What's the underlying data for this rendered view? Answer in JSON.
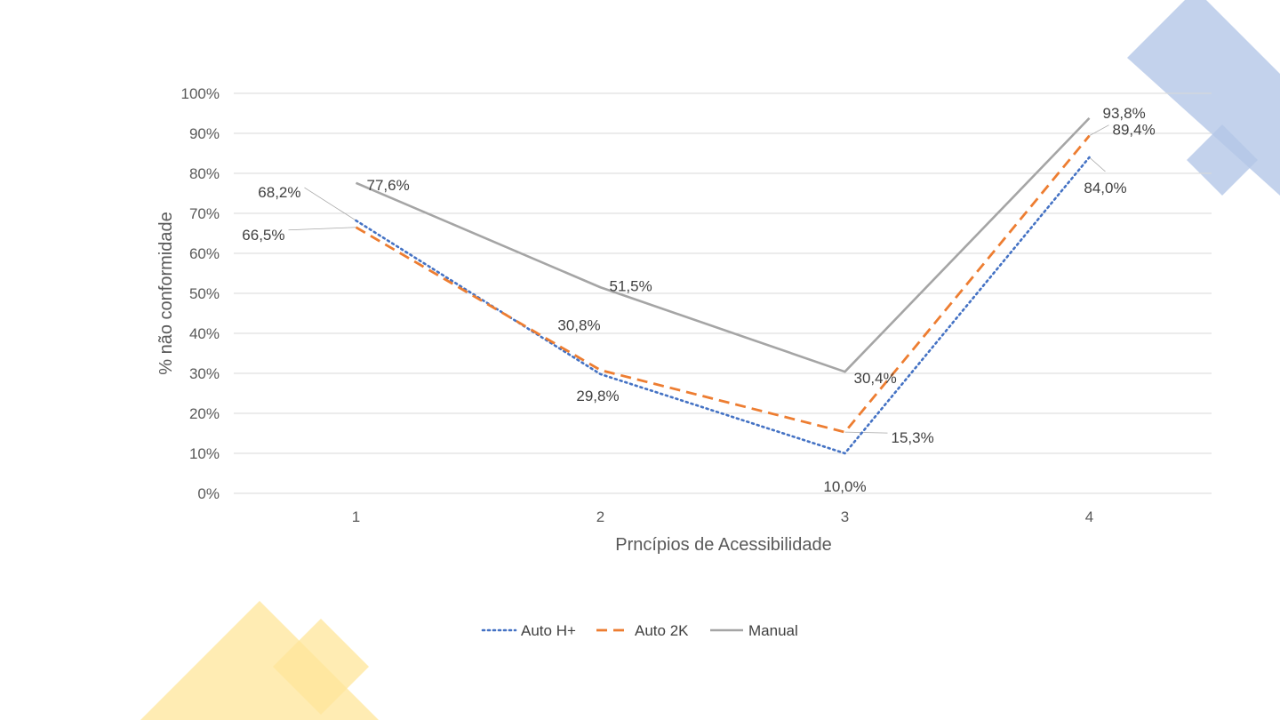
{
  "chart_data": {
    "type": "line",
    "title": "",
    "xlabel": "Prncípios de Acessibilidade",
    "ylabel": "% não conformidade",
    "categories": [
      "1",
      "2",
      "3",
      "4"
    ],
    "ylim": [
      0,
      100
    ],
    "yticks": [
      "0%",
      "10%",
      "20%",
      "30%",
      "40%",
      "50%",
      "60%",
      "70%",
      "80%",
      "90%",
      "100%"
    ],
    "grid": true,
    "legend_position": "bottom",
    "series": [
      {
        "name": "Auto H+",
        "values": [
          68.2,
          29.8,
          10.0,
          84.0
        ],
        "labels": [
          "68,2%",
          "29,8%",
          "10,0%",
          "84,0%"
        ],
        "color": "#4472C4",
        "style": "dotted"
      },
      {
        "name": "Auto 2K",
        "values": [
          66.5,
          30.8,
          15.3,
          89.4
        ],
        "labels": [
          "66,5%",
          "30,8%",
          "15,3%",
          "89,4%"
        ],
        "color": "#ED7D31",
        "style": "dashed"
      },
      {
        "name": "Manual",
        "values": [
          77.6,
          51.5,
          30.4,
          93.8
        ],
        "labels": [
          "77,6%",
          "51,5%",
          "30,4%",
          "93,8%"
        ],
        "color": "#A5A5A5",
        "style": "solid"
      }
    ]
  },
  "decor": {
    "top_right_color": "#B4C7E7",
    "bottom_left_color": "#FFE699"
  }
}
